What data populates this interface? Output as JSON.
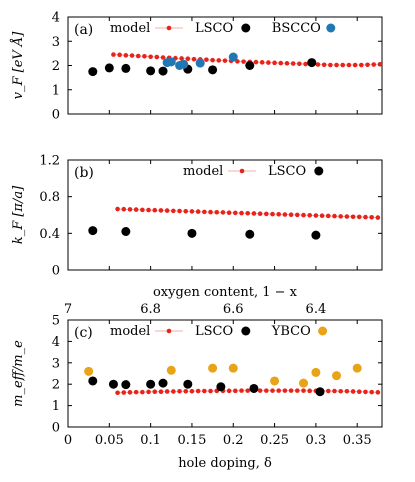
{
  "chart_data": [
    {
      "panel": "(a)",
      "type": "scatter",
      "ylabel": "v_F [eV Å]",
      "xlim": [
        0,
        0.38
      ],
      "ylim": [
        0,
        4
      ],
      "yticks": [
        0,
        1,
        2,
        3,
        4
      ],
      "ytick_labels": [
        "0",
        "1",
        "2",
        "3",
        "4"
      ],
      "legend": {
        "placement": "top",
        "entries": [
          "model",
          "LSCO",
          "BSCCO"
        ]
      },
      "series": [
        {
          "name": "model",
          "style": "line-dots",
          "color": "#e8231a",
          "x": [
            0.055,
            0.0625,
            0.07,
            0.0775,
            0.085,
            0.0925,
            0.1,
            0.1075,
            0.115,
            0.1225,
            0.13,
            0.1375,
            0.145,
            0.1525,
            0.16,
            0.1675,
            0.175,
            0.1825,
            0.19,
            0.1975,
            0.205,
            0.2125,
            0.22,
            0.2275,
            0.235,
            0.2425,
            0.25,
            0.2575,
            0.265,
            0.2725,
            0.28,
            0.2875,
            0.295,
            0.3025,
            0.31,
            0.3175,
            0.325,
            0.3325,
            0.34,
            0.3475,
            0.355,
            0.3625,
            0.37,
            0.3775
          ],
          "y": [
            2.45,
            2.44,
            2.42,
            2.41,
            2.39,
            2.38,
            2.36,
            2.35,
            2.33,
            2.32,
            2.3,
            2.29,
            2.28,
            2.26,
            2.25,
            2.24,
            2.22,
            2.21,
            2.2,
            2.19,
            2.17,
            2.16,
            2.15,
            2.14,
            2.13,
            2.12,
            2.11,
            2.1,
            2.09,
            2.08,
            2.07,
            2.06,
            2.05,
            2.04,
            2.03,
            2.02,
            2.02,
            2.02,
            2.02,
            2.02,
            2.02,
            2.03,
            2.04,
            2.05
          ]
        },
        {
          "name": "LSCO",
          "style": "dots",
          "color": "#000000",
          "x": [
            0.03,
            0.05,
            0.07,
            0.1,
            0.115,
            0.145,
            0.175,
            0.22,
            0.295
          ],
          "y": [
            1.75,
            1.9,
            1.88,
            1.78,
            1.77,
            1.85,
            1.82,
            2.0,
            2.12
          ]
        },
        {
          "name": "BSCCO",
          "style": "dots",
          "color": "#1f77b4",
          "x": [
            0.12,
            0.125,
            0.135,
            0.14,
            0.16,
            0.2
          ],
          "y": [
            2.12,
            2.15,
            2.0,
            2.05,
            2.1,
            2.35
          ]
        }
      ]
    },
    {
      "panel": "(b)",
      "type": "scatter",
      "ylabel": "k_F [π/a]",
      "xlim": [
        0,
        0.38
      ],
      "ylim": [
        0,
        1.2
      ],
      "yticks": [
        0,
        0.4,
        0.8,
        1.2
      ],
      "ytick_labels": [
        "0",
        "0.4",
        "0.8",
        "1.2"
      ],
      "legend": {
        "placement": "top-right",
        "entries": [
          "model",
          "LSCO"
        ]
      },
      "series": [
        {
          "name": "model",
          "style": "line-dots",
          "color": "#e8231a",
          "x": [
            0.06,
            0.0675,
            0.075,
            0.0825,
            0.09,
            0.0975,
            0.105,
            0.1125,
            0.12,
            0.1275,
            0.135,
            0.1425,
            0.15,
            0.1575,
            0.165,
            0.1725,
            0.18,
            0.1875,
            0.195,
            0.2025,
            0.21,
            0.2175,
            0.225,
            0.2325,
            0.24,
            0.2475,
            0.255,
            0.2625,
            0.27,
            0.2775,
            0.285,
            0.2925,
            0.3,
            0.3075,
            0.315,
            0.3225,
            0.33,
            0.3375,
            0.345,
            0.3525,
            0.36,
            0.3675,
            0.375
          ],
          "y": [
            0.665,
            0.663,
            0.661,
            0.659,
            0.656,
            0.654,
            0.652,
            0.65,
            0.648,
            0.645,
            0.643,
            0.641,
            0.639,
            0.637,
            0.634,
            0.632,
            0.63,
            0.628,
            0.625,
            0.623,
            0.621,
            0.619,
            0.617,
            0.614,
            0.612,
            0.61,
            0.608,
            0.605,
            0.603,
            0.601,
            0.599,
            0.597,
            0.594,
            0.592,
            0.59,
            0.588,
            0.585,
            0.583,
            0.581,
            0.579,
            0.577,
            0.575,
            0.572
          ]
        },
        {
          "name": "LSCO",
          "style": "dots",
          "color": "#000000",
          "x": [
            0.03,
            0.07,
            0.15,
            0.22,
            0.3
          ],
          "y": [
            0.43,
            0.42,
            0.4,
            0.39,
            0.38
          ]
        }
      ]
    },
    {
      "panel": "(c)",
      "type": "scatter",
      "ylabel": "m_eff/m_e",
      "xlabel": "hole doping, δ",
      "xlim": [
        0,
        0.38
      ],
      "ylim": [
        0,
        5
      ],
      "xticks": [
        0,
        0.05,
        0.1,
        0.15,
        0.2,
        0.25,
        0.3,
        0.35
      ],
      "xtick_labels": [
        "0",
        "0.05",
        "0.1",
        "0.15",
        "0.2",
        "0.25",
        "0.3",
        "0.35"
      ],
      "yticks": [
        0,
        1,
        2,
        3,
        4,
        5
      ],
      "ytick_labels": [
        "0",
        "1",
        "2",
        "3",
        "4",
        "5"
      ],
      "top_axis": {
        "label": "oxygen content, 1 − x",
        "ticks": [
          7.0,
          6.8,
          6.6,
          6.4
        ],
        "tick_labels": [
          "7",
          "6.8",
          "6.6",
          "6.4"
        ],
        "tick_positions_delta": [
          0,
          0.1,
          0.2,
          0.3
        ]
      },
      "legend": {
        "placement": "top",
        "entries": [
          "model",
          "LSCO",
          "YBCO"
        ]
      },
      "series": [
        {
          "name": "model",
          "style": "line-dots",
          "color": "#e8231a",
          "x": [
            0.06,
            0.0675,
            0.075,
            0.0825,
            0.09,
            0.0975,
            0.105,
            0.1125,
            0.12,
            0.1275,
            0.135,
            0.1425,
            0.15,
            0.1575,
            0.165,
            0.1725,
            0.18,
            0.1875,
            0.195,
            0.2025,
            0.21,
            0.2175,
            0.225,
            0.2325,
            0.24,
            0.2475,
            0.255,
            0.2625,
            0.27,
            0.2775,
            0.285,
            0.2925,
            0.3,
            0.3075,
            0.315,
            0.3225,
            0.33,
            0.3375,
            0.345,
            0.3525,
            0.36,
            0.3675,
            0.375
          ],
          "y": [
            1.6,
            1.61,
            1.62,
            1.63,
            1.63,
            1.64,
            1.65,
            1.65,
            1.66,
            1.66,
            1.67,
            1.67,
            1.67,
            1.68,
            1.68,
            1.68,
            1.69,
            1.69,
            1.69,
            1.69,
            1.7,
            1.7,
            1.7,
            1.7,
            1.7,
            1.7,
            1.7,
            1.7,
            1.7,
            1.7,
            1.7,
            1.69,
            1.69,
            1.69,
            1.68,
            1.68,
            1.67,
            1.67,
            1.66,
            1.65,
            1.64,
            1.63,
            1.62
          ]
        },
        {
          "name": "LSCO",
          "style": "dots",
          "color": "#000000",
          "x": [
            0.03,
            0.055,
            0.07,
            0.1,
            0.115,
            0.145,
            0.185,
            0.225,
            0.305
          ],
          "y": [
            2.15,
            2.0,
            1.98,
            2.0,
            2.05,
            2.0,
            1.88,
            1.8,
            1.65
          ]
        },
        {
          "name": "YBCO",
          "style": "dots",
          "color": "#e8a317",
          "x": [
            0.025,
            0.125,
            0.175,
            0.2,
            0.25,
            0.285,
            0.3,
            0.325,
            0.35
          ],
          "y": [
            2.6,
            2.65,
            2.75,
            2.75,
            2.15,
            2.05,
            2.55,
            2.4,
            2.75
          ]
        }
      ]
    }
  ]
}
